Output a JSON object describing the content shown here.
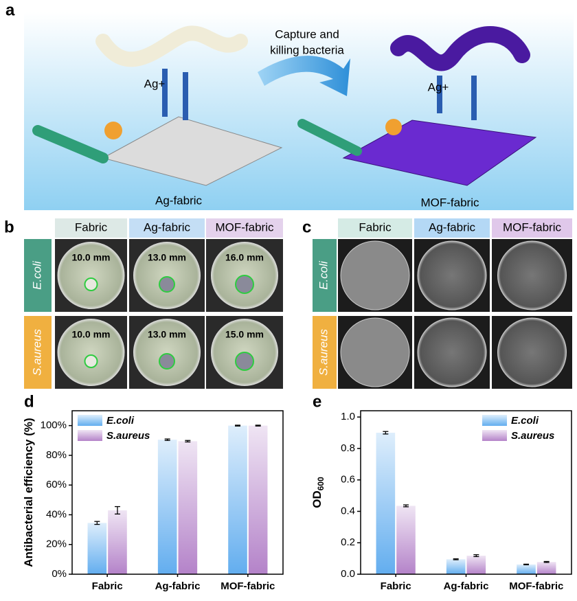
{
  "panel_a": {
    "label": "a",
    "caption": [
      "Capture and",
      "killing bacteria"
    ],
    "ion_left": "Ag+",
    "ion_right": "Ag+",
    "fabric_left": "Ag-fabric",
    "fabric_right": "MOF-fabric"
  },
  "panel_b": {
    "label": "b",
    "columns": [
      "Fabric",
      "Ag-fabric",
      "MOF-fabric"
    ],
    "rows": [
      "E.coli",
      "S.aureus"
    ],
    "cells": [
      [
        "10.0 mm",
        "13.0 mm",
        "16.0 mm"
      ],
      [
        "10.0 mm",
        "13.0 mm",
        "15.0 mm"
      ]
    ]
  },
  "panel_c": {
    "label": "c",
    "columns": [
      "Fabric",
      "Ag-fabric",
      "MOF-fabric"
    ],
    "rows": [
      "E.coli",
      "S.aureus"
    ]
  },
  "chart_data": [
    {
      "type": "bar",
      "label": "d",
      "ylabel": "Antibacterial efficiency (%)",
      "categories": [
        "Fabric",
        "Ag-fabric",
        "MOF-fabric"
      ],
      "series": [
        {
          "name": "E.coli",
          "color": "#5aa9ee",
          "values": [
            34.5,
            90.5,
            100
          ],
          "errors": [
            1,
            0.5,
            0.3
          ]
        },
        {
          "name": "S.aureus",
          "color": "#b07cc6",
          "values": [
            43,
            89.5,
            100
          ],
          "errors": [
            2.5,
            0.5,
            0.3
          ]
        }
      ],
      "ylim": [
        0,
        110
      ],
      "yticks": [
        {
          "value": 0,
          "label": "0%"
        },
        {
          "value": 20,
          "label": "20%"
        },
        {
          "value": 40,
          "label": "40%"
        },
        {
          "value": 60,
          "label": "60%"
        },
        {
          "value": 80,
          "label": "80%"
        },
        {
          "value": 100,
          "label": "100%"
        }
      ],
      "legend": "upper left"
    },
    {
      "type": "bar",
      "label": "e",
      "ylabel": "OD",
      "ylabel_subscript": "600",
      "categories": [
        "Fabric",
        "Ag-fabric",
        "MOF-fabric"
      ],
      "series": [
        {
          "name": "E.coli",
          "color": "#5aa9ee",
          "values": [
            0.9,
            0.095,
            0.062
          ],
          "errors": [
            0.008,
            0.003,
            0.002
          ]
        },
        {
          "name": "S.aureus",
          "color": "#b07cc6",
          "values": [
            0.435,
            0.118,
            0.078
          ],
          "errors": [
            0.006,
            0.006,
            0.003
          ]
        }
      ],
      "ylim": [
        0,
        1.04
      ],
      "yticks": [
        {
          "value": 0,
          "label": "0.0"
        },
        0.2,
        0.4,
        0.6,
        0.8,
        {
          "value": 1,
          "label": "1.0"
        }
      ],
      "legend": "upper right"
    }
  ]
}
